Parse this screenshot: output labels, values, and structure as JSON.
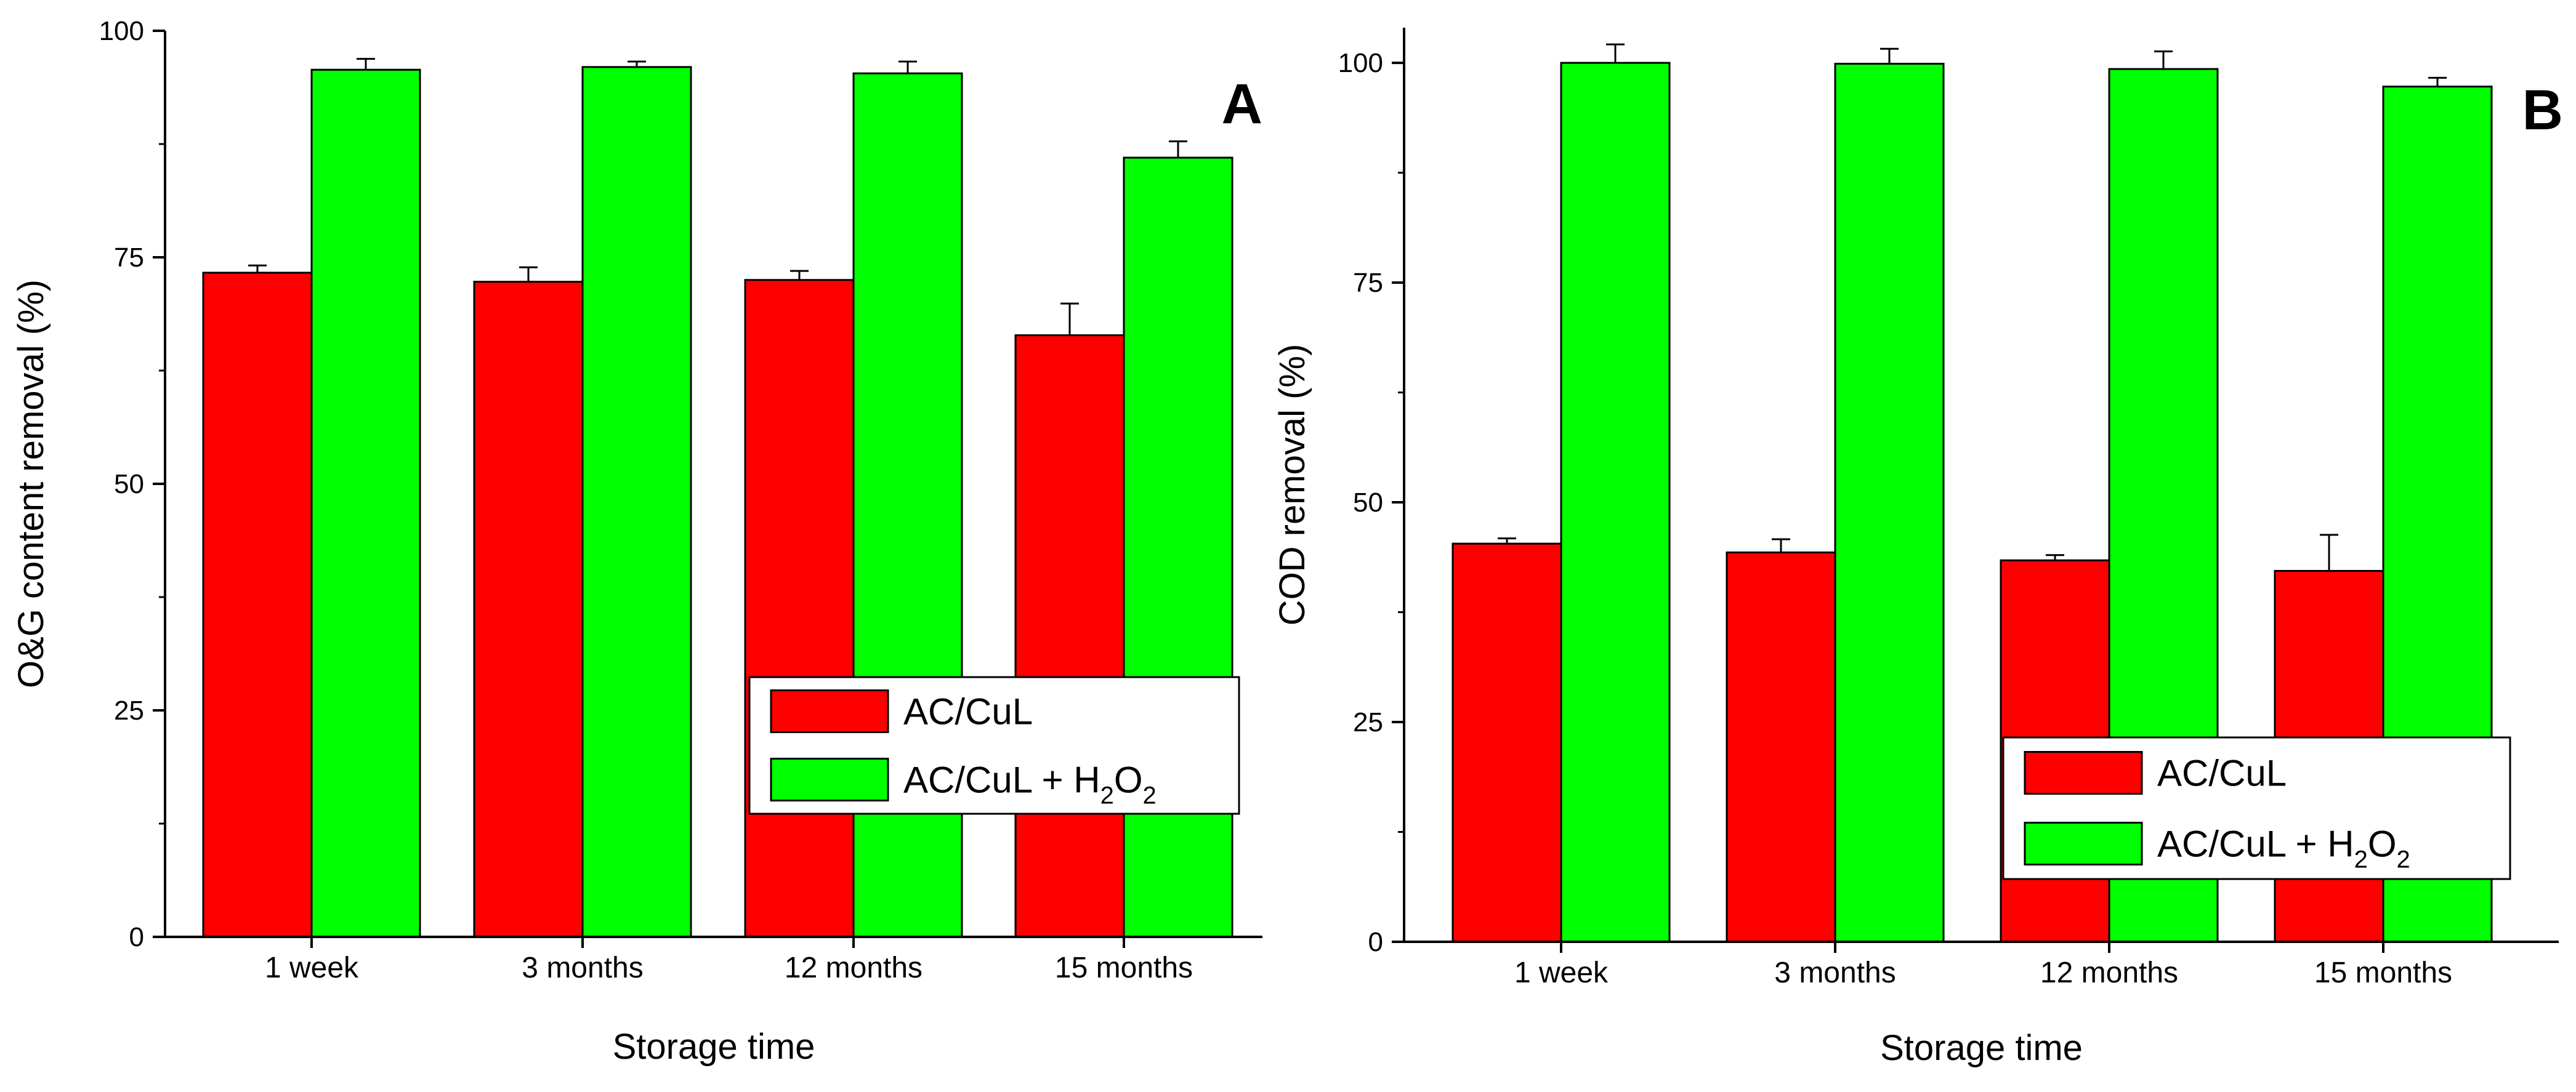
{
  "colors": {
    "series_1": "#ff0000",
    "series_2": "#00ff00",
    "axis": "#000000",
    "background": "#ffffff"
  },
  "chart_data": [
    {
      "type": "bar",
      "panel": "A",
      "categories": [
        "1 week",
        "3 months",
        "12 months",
        "15 months"
      ],
      "series": [
        {
          "name": "AC/CuL",
          "values": [
            73.3,
            72.3,
            72.5,
            66.4
          ],
          "errors": [
            0.8,
            1.6,
            1.0,
            3.5
          ]
        },
        {
          "name": "AC/CuL + H2O2",
          "values": [
            95.7,
            96.0,
            95.3,
            86.0
          ],
          "errors": [
            1.2,
            0.6,
            1.3,
            1.8
          ]
        }
      ],
      "legend_parts": [
        "AC/CuL + H",
        "2",
        "O",
        "2"
      ],
      "xlabel": "Storage time",
      "ylabel": "O&G content removal (%)",
      "ylim": [
        0,
        100
      ],
      "yticks": [
        0,
        25,
        50,
        75,
        100
      ],
      "grid": false,
      "legend_position": "lower-right"
    },
    {
      "type": "bar",
      "panel": "B",
      "categories": [
        "1 week",
        "3 months",
        "12 months",
        "15 months"
      ],
      "series": [
        {
          "name": "AC/CuL",
          "values": [
            45.3,
            44.3,
            43.4,
            42.2
          ],
          "errors": [
            0.6,
            1.5,
            0.6,
            4.1
          ]
        },
        {
          "name": "AC/CuL + H2O2",
          "values": [
            100.0,
            99.9,
            99.3,
            97.3
          ],
          "errors": [
            2.1,
            1.7,
            2.0,
            1.0
          ]
        }
      ],
      "legend_parts": [
        "AC/CuL + H",
        "2",
        "O",
        "2"
      ],
      "xlabel": "Storage time",
      "ylabel": "COD removal (%)",
      "ylim": [
        0,
        104
      ],
      "yticks": [
        0,
        25,
        50,
        75,
        100
      ],
      "grid": false,
      "legend_position": "lower-right"
    }
  ]
}
